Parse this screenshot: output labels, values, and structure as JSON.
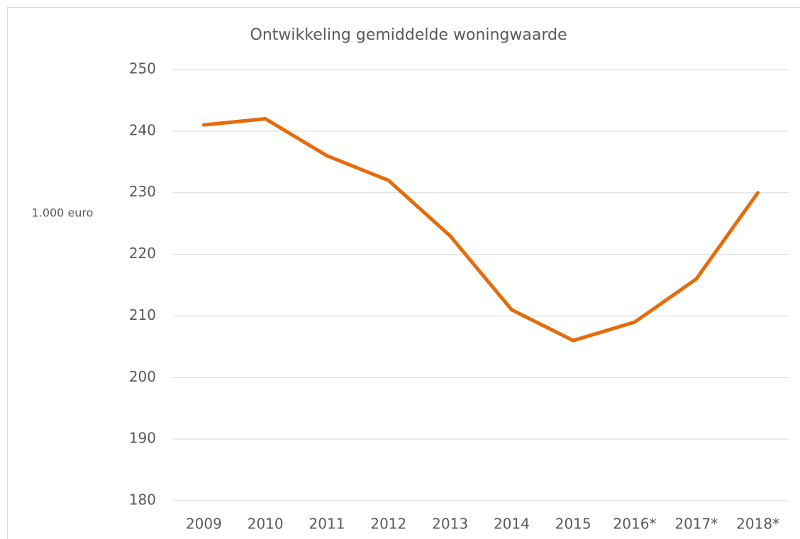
{
  "chart_data": {
    "type": "line",
    "title": "Ontwikkeling gemiddelde woningwaarde",
    "ylabel": "1.000 euro",
    "categories": [
      "2009",
      "2010",
      "2011",
      "2012",
      "2013",
      "2014",
      "2015",
      "2016*",
      "2017*",
      "2018*"
    ],
    "values": [
      241,
      242,
      236,
      232,
      223,
      211,
      206,
      209,
      216,
      230
    ],
    "color": "#e46c0a",
    "ylim": [
      180,
      250
    ],
    "yticks": [
      180,
      190,
      200,
      210,
      220,
      230,
      240,
      250
    ],
    "grid": true
  }
}
